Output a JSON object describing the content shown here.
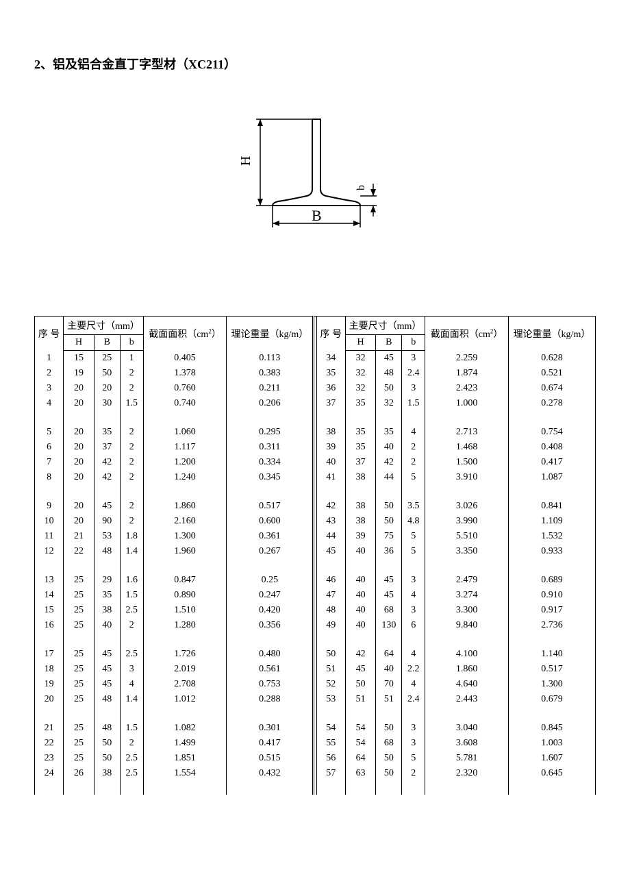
{
  "title": "2、铝及铝合金直丁字型材（XC211）",
  "diagram": {
    "label_H": "H",
    "label_B": "B",
    "label_b": "b",
    "stroke": "#000000",
    "stroke_width": 2
  },
  "headers": {
    "seq": "序 号",
    "size_group": "主要尺寸（mm）",
    "H": "H",
    "B": "B",
    "b": "b",
    "area_prefix": "截面面积（cm",
    "area_suffix": "）",
    "area_sup": "2",
    "weight": "理论重量（kg/m）"
  },
  "left_rows": [
    {
      "seq": "1",
      "H": "15",
      "B": "25",
      "b": "1",
      "area": "0.405",
      "wt": "0.113"
    },
    {
      "seq": "2",
      "H": "19",
      "B": "50",
      "b": "2",
      "area": "1.378",
      "wt": "0.383"
    },
    {
      "seq": "3",
      "H": "20",
      "B": "20",
      "b": "2",
      "area": "0.760",
      "wt": "0.211"
    },
    {
      "seq": "4",
      "H": "20",
      "B": "30",
      "b": "1.5",
      "area": "0.740",
      "wt": "0.206"
    },
    null,
    {
      "seq": "5",
      "H": "20",
      "B": "35",
      "b": "2",
      "area": "1.060",
      "wt": "0.295"
    },
    {
      "seq": "6",
      "H": "20",
      "B": "37",
      "b": "2",
      "area": "1.117",
      "wt": "0.311"
    },
    {
      "seq": "7",
      "H": "20",
      "B": "42",
      "b": "2",
      "area": "1.200",
      "wt": "0.334"
    },
    {
      "seq": "8",
      "H": "20",
      "B": "42",
      "b": "2",
      "area": "1.240",
      "wt": "0.345"
    },
    null,
    {
      "seq": "9",
      "H": "20",
      "B": "45",
      "b": "2",
      "area": "1.860",
      "wt": "0.517"
    },
    {
      "seq": "10",
      "H": "20",
      "B": "90",
      "b": "2",
      "area": "2.160",
      "wt": "0.600"
    },
    {
      "seq": "11",
      "H": "21",
      "B": "53",
      "b": "1.8",
      "area": "1.300",
      "wt": "0.361"
    },
    {
      "seq": "12",
      "H": "22",
      "B": "48",
      "b": "1.4",
      "area": "1.960",
      "wt": "0.267"
    },
    null,
    {
      "seq": "13",
      "H": "25",
      "B": "29",
      "b": "1.6",
      "area": "0.847",
      "wt": "0.25"
    },
    {
      "seq": "14",
      "H": "25",
      "B": "35",
      "b": "1.5",
      "area": "0.890",
      "wt": "0.247"
    },
    {
      "seq": "15",
      "H": "25",
      "B": "38",
      "b": "2.5",
      "area": "1.510",
      "wt": "0.420"
    },
    {
      "seq": "16",
      "H": "25",
      "B": "40",
      "b": "2",
      "area": "1.280",
      "wt": "0.356"
    },
    null,
    {
      "seq": "17",
      "H": "25",
      "B": "45",
      "b": "2.5",
      "area": "1.726",
      "wt": "0.480"
    },
    {
      "seq": "18",
      "H": "25",
      "B": "45",
      "b": "3",
      "area": "2.019",
      "wt": "0.561"
    },
    {
      "seq": "19",
      "H": "25",
      "B": "45",
      "b": "4",
      "area": "2.708",
      "wt": "0.753"
    },
    {
      "seq": "20",
      "H": "25",
      "B": "48",
      "b": "1.4",
      "area": "1.012",
      "wt": "0.288"
    },
    null,
    {
      "seq": "21",
      "H": "25",
      "B": "48",
      "b": "1.5",
      "area": "1.082",
      "wt": "0.301"
    },
    {
      "seq": "22",
      "H": "25",
      "B": "50",
      "b": "2",
      "area": "1.499",
      "wt": "0.417"
    },
    {
      "seq": "23",
      "H": "25",
      "B": "50",
      "b": "2.5",
      "area": "1.851",
      "wt": "0.515"
    },
    {
      "seq": "24",
      "H": "26",
      "B": "38",
      "b": "2.5",
      "area": "1.554",
      "wt": "0.432"
    },
    null
  ],
  "right_rows": [
    {
      "seq": "34",
      "H": "32",
      "B": "45",
      "b": "3",
      "area": "2.259",
      "wt": "0.628"
    },
    {
      "seq": "35",
      "H": "32",
      "B": "48",
      "b": "2.4",
      "area": "1.874",
      "wt": "0.521"
    },
    {
      "seq": "36",
      "H": "32",
      "B": "50",
      "b": "3",
      "area": "2.423",
      "wt": "0.674"
    },
    {
      "seq": "37",
      "H": "35",
      "B": "32",
      "b": "1.5",
      "area": "1.000",
      "wt": "0.278"
    },
    null,
    {
      "seq": "38",
      "H": "35",
      "B": "35",
      "b": "4",
      "area": "2.713",
      "wt": "0.754"
    },
    {
      "seq": "39",
      "H": "35",
      "B": "40",
      "b": "2",
      "area": "1.468",
      "wt": "0.408"
    },
    {
      "seq": "40",
      "H": "37",
      "B": "42",
      "b": "2",
      "area": "1.500",
      "wt": "0.417"
    },
    {
      "seq": "41",
      "H": "38",
      "B": "44",
      "b": "5",
      "area": "3.910",
      "wt": "1.087"
    },
    null,
    {
      "seq": "42",
      "H": "38",
      "B": "50",
      "b": "3.5",
      "area": "3.026",
      "wt": "0.841"
    },
    {
      "seq": "43",
      "H": "38",
      "B": "50",
      "b": "4.8",
      "area": "3.990",
      "wt": "1.109"
    },
    {
      "seq": "44",
      "H": "39",
      "B": "75",
      "b": "5",
      "area": "5.510",
      "wt": "1.532"
    },
    {
      "seq": "45",
      "H": "40",
      "B": "36",
      "b": "5",
      "area": "3.350",
      "wt": "0.933"
    },
    null,
    {
      "seq": "46",
      "H": "40",
      "B": "45",
      "b": "3",
      "area": "2.479",
      "wt": "0.689"
    },
    {
      "seq": "47",
      "H": "40",
      "B": "45",
      "b": "4",
      "area": "3.274",
      "wt": "0.910"
    },
    {
      "seq": "48",
      "H": "40",
      "B": "68",
      "b": "3",
      "area": "3.300",
      "wt": "0.917"
    },
    {
      "seq": "49",
      "H": "40",
      "B": "130",
      "b": "6",
      "area": "9.840",
      "wt": "2.736"
    },
    null,
    {
      "seq": "50",
      "H": "42",
      "B": "64",
      "b": "4",
      "area": "4.100",
      "wt": "1.140"
    },
    {
      "seq": "51",
      "H": "45",
      "B": "40",
      "b": "2.2",
      "area": "1.860",
      "wt": "0.517"
    },
    {
      "seq": "52",
      "H": "50",
      "B": "70",
      "b": "4",
      "area": "4.640",
      "wt": "1.300"
    },
    {
      "seq": "53",
      "H": "51",
      "B": "51",
      "b": "2.4",
      "area": "2.443",
      "wt": "0.679"
    },
    null,
    {
      "seq": "54",
      "H": "54",
      "B": "50",
      "b": "3",
      "area": "3.040",
      "wt": "0.845"
    },
    {
      "seq": "55",
      "H": "54",
      "B": "68",
      "b": "3",
      "area": "3.608",
      "wt": "1.003"
    },
    {
      "seq": "56",
      "H": "64",
      "B": "50",
      "b": "5",
      "area": "5.781",
      "wt": "1.607"
    },
    {
      "seq": "57",
      "H": "63",
      "B": "50",
      "b": "2",
      "area": "2.320",
      "wt": "0.645"
    },
    null
  ]
}
